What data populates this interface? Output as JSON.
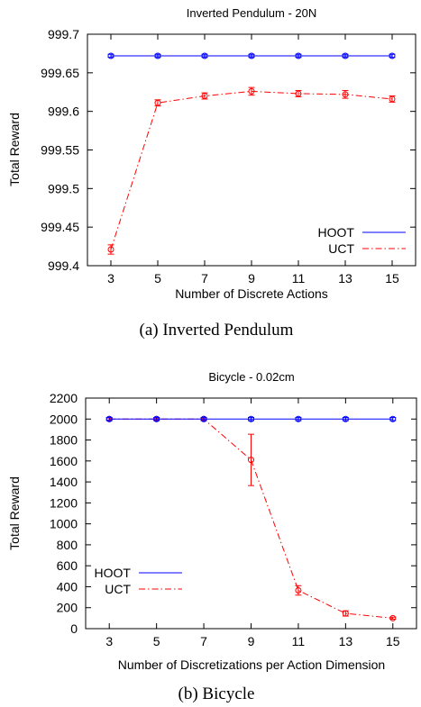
{
  "chart_data": [
    {
      "type": "line",
      "title": "Inverted Pendulum - 20N",
      "xlabel": "Number of Discrete Actions",
      "ylabel": "Total Reward",
      "caption": "(a)  Inverted Pendulum",
      "x": [
        3,
        5,
        7,
        9,
        11,
        13,
        15
      ],
      "xlim": [
        2,
        16
      ],
      "ylim": [
        999.4,
        999.7
      ],
      "xticks": [
        "3",
        "5",
        "7",
        "9",
        "11",
        "13",
        "15"
      ],
      "yticks": [
        "999.4",
        "999.45",
        "999.5",
        "999.55",
        "999.6",
        "999.65",
        "999.7"
      ],
      "legend_position": "bottom-right",
      "series": [
        {
          "name": "HOOT",
          "color": "#0000ff",
          "style": "solid",
          "values": [
            999.672,
            999.672,
            999.672,
            999.672,
            999.672,
            999.672,
            999.672
          ],
          "errors": [
            0.002,
            0.002,
            0.002,
            0.002,
            0.002,
            0.002,
            0.002
          ]
        },
        {
          "name": "UCT",
          "color": "#ff0000",
          "style": "dashdot",
          "values": [
            999.421,
            999.611,
            999.62,
            999.626,
            999.623,
            999.622,
            999.616
          ],
          "errors": [
            0.006,
            0.004,
            0.004,
            0.005,
            0.004,
            0.005,
            0.004
          ]
        }
      ]
    },
    {
      "type": "line",
      "title": "Bicycle - 0.02cm",
      "xlabel": "Number of Discretizations per Action Dimension",
      "ylabel": "Total Reward",
      "caption": "(b)  Bicycle",
      "x": [
        3,
        5,
        7,
        9,
        11,
        13,
        15
      ],
      "xlim": [
        2,
        16
      ],
      "ylim": [
        0,
        2200
      ],
      "xticks": [
        "3",
        "5",
        "7",
        "9",
        "11",
        "13",
        "15"
      ],
      "yticks": [
        "0",
        "200",
        "400",
        "600",
        "800",
        "1000",
        "1200",
        "1400",
        "1600",
        "1800",
        "2000",
        "2200"
      ],
      "legend_position": "bottom-left",
      "series": [
        {
          "name": "HOOT",
          "color": "#0000ff",
          "style": "solid",
          "values": [
            2000,
            2000,
            2000,
            2000,
            2000,
            2000,
            2000
          ],
          "errors": [
            15,
            15,
            15,
            15,
            15,
            15,
            15
          ]
        },
        {
          "name": "UCT",
          "color": "#ff0000",
          "style": "dashdot",
          "values": [
            2000,
            2000,
            2000,
            1610,
            365,
            145,
            100
          ],
          "errors": [
            10,
            10,
            10,
            245,
            45,
            25,
            10
          ]
        }
      ]
    }
  ]
}
